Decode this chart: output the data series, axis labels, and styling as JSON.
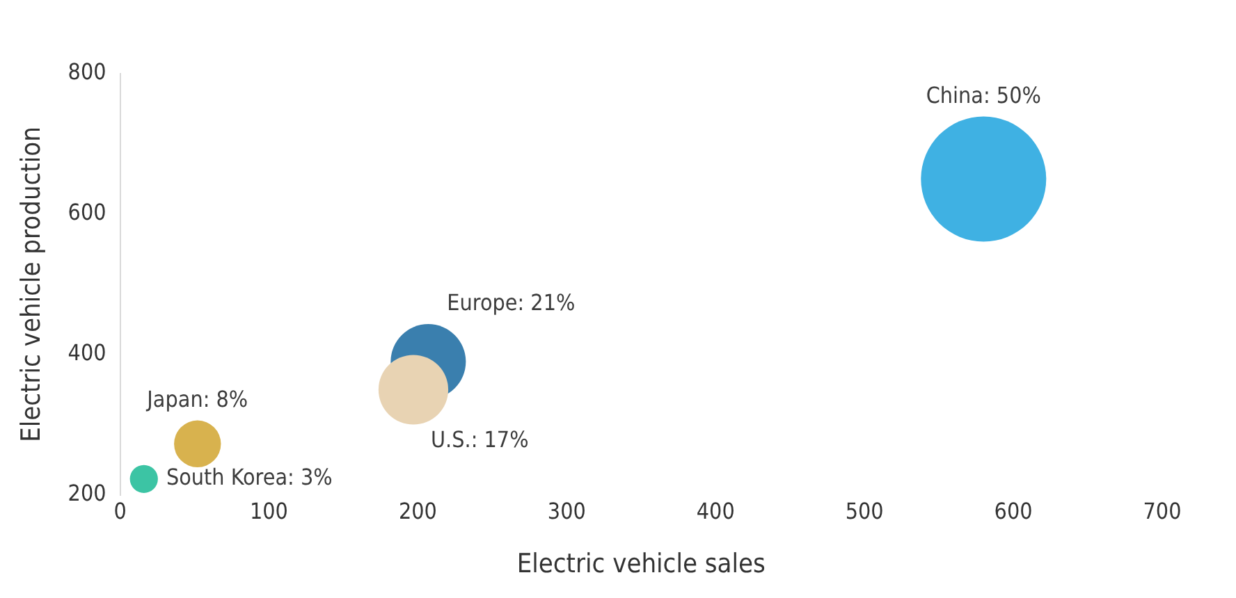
{
  "chart_data": {
    "type": "bubble",
    "xlabel": "Electric vehicle sales",
    "ylabel": "Electric vehicle production",
    "xlim": [
      0,
      700
    ],
    "xticks": [
      0,
      100,
      200,
      300,
      400,
      500,
      600,
      700
    ],
    "ylim": [
      200,
      800
    ],
    "yticks": [
      200,
      400,
      600,
      800
    ],
    "grid": false,
    "legend": false,
    "series": [
      {
        "name": "China: 50%",
        "color": "#3fb1e3",
        "x": [
          580
        ],
        "values": [
          650
        ],
        "sizes": [
          1
        ]
      },
      {
        "name": "Europe: 21%",
        "color": "#3a7fae",
        "x": [
          207
        ],
        "values": [
          390
        ],
        "sizes": [
          0.36
        ]
      },
      {
        "name": "U.S.: 17%",
        "color": "#e8d3b3",
        "x": [
          197
        ],
        "values": [
          350
        ],
        "sizes": [
          0.31
        ]
      },
      {
        "name": "Japan: 8%",
        "color": "#d8b24e",
        "x": [
          52
        ],
        "values": [
          273
        ],
        "sizes": [
          0.14
        ]
      },
      {
        "name": "South Korea: 3%",
        "color": "#3cc4a4",
        "x": [
          16
        ],
        "values": [
          223
        ],
        "sizes": [
          0.05
        ]
      }
    ]
  }
}
